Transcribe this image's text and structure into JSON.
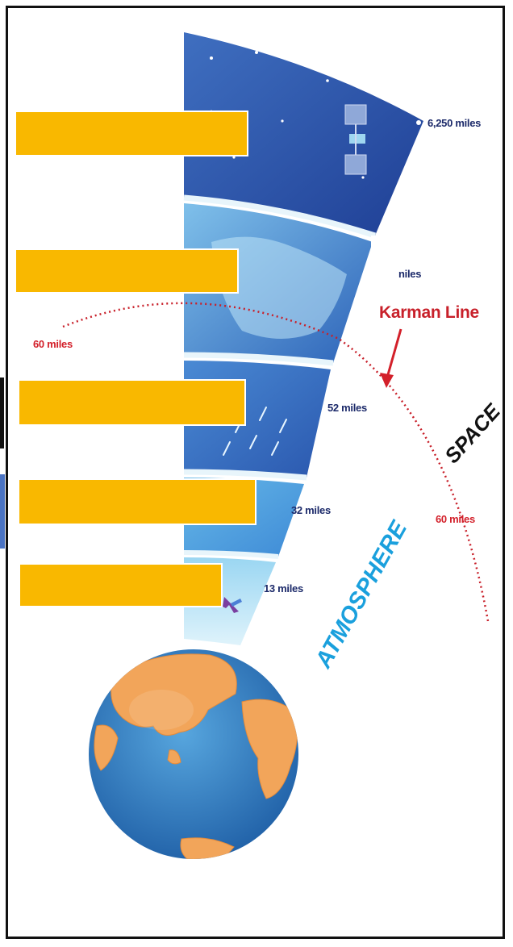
{
  "labels": {
    "alt_top": "6,250 miles",
    "alt_partial": "niles",
    "karman": "Karman Line",
    "alt_60_left": "60 miles",
    "alt_52": "52 miles",
    "alt_32": "32 miles",
    "alt_60_right": "60 miles",
    "alt_13": "13 miles",
    "space": "SPACE",
    "atmosphere": "ATMOSPHERE"
  },
  "colors": {
    "mask_boxes": "#f9b800",
    "karman_line": "#c8202a",
    "atmosphere_text": "#1aa0dd",
    "ocean": "#2f7fc2",
    "land": "#f2a55a"
  }
}
